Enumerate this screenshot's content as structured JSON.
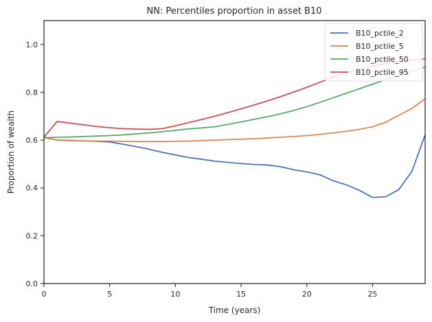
{
  "chart_data": {
    "type": "line",
    "title": "NN: Percentiles proportion in asset B10",
    "xlabel": "Time (years)",
    "ylabel": "Proportion of wealth",
    "xlim": [
      0,
      29
    ],
    "ylim": [
      0,
      1.1
    ],
    "xticks": [
      0,
      5,
      10,
      15,
      20,
      25
    ],
    "yticks": [
      0.0,
      0.2,
      0.4,
      0.6,
      0.8,
      1.0
    ],
    "xtick_labels": [
      "0",
      "5",
      "10",
      "15",
      "20",
      "25"
    ],
    "ytick_labels": [
      "0.0",
      "0.2",
      "0.4",
      "0.6",
      "0.8",
      "1.0"
    ],
    "legend_position": "top-right",
    "grid": false,
    "x": [
      0,
      1,
      2,
      3,
      4,
      5,
      6,
      7,
      8,
      9,
      10,
      11,
      12,
      13,
      14,
      15,
      16,
      17,
      18,
      19,
      20,
      21,
      22,
      23,
      24,
      25,
      26,
      27,
      28,
      29
    ],
    "series": [
      {
        "name": "B10_pctile_2",
        "color": "#4c72b0",
        "values": [
          0.612,
          0.6,
          0.598,
          0.597,
          0.595,
          0.592,
          0.583,
          0.573,
          0.562,
          0.549,
          0.538,
          0.527,
          0.52,
          0.512,
          0.507,
          0.502,
          0.498,
          0.496,
          0.489,
          0.476,
          0.467,
          0.455,
          0.43,
          0.413,
          0.39,
          0.36,
          0.363,
          0.393,
          0.47,
          0.622
        ]
      },
      {
        "name": "B10_pctile_5",
        "color": "#dd8452",
        "values": [
          0.61,
          0.601,
          0.599,
          0.597,
          0.596,
          0.596,
          0.595,
          0.594,
          0.594,
          0.594,
          0.595,
          0.596,
          0.598,
          0.6,
          0.602,
          0.604,
          0.606,
          0.609,
          0.612,
          0.615,
          0.619,
          0.624,
          0.63,
          0.637,
          0.645,
          0.656,
          0.675,
          0.704,
          0.733,
          0.773
        ]
      },
      {
        "name": "B10_pctile_50",
        "color": "#55a868",
        "values": [
          0.61,
          0.612,
          0.613,
          0.615,
          0.617,
          0.619,
          0.622,
          0.626,
          0.63,
          0.635,
          0.641,
          0.647,
          0.651,
          0.656,
          0.666,
          0.676,
          0.687,
          0.698,
          0.71,
          0.724,
          0.74,
          0.758,
          0.777,
          0.796,
          0.815,
          0.834,
          0.853,
          0.871,
          0.888,
          0.906
        ]
      },
      {
        "name": "B10_pctile_95",
        "color": "#c44e52",
        "values": [
          0.612,
          0.678,
          0.671,
          0.664,
          0.657,
          0.652,
          0.648,
          0.646,
          0.645,
          0.648,
          0.66,
          0.673,
          0.686,
          0.7,
          0.715,
          0.731,
          0.747,
          0.764,
          0.782,
          0.801,
          0.821,
          0.842,
          0.863,
          0.881,
          0.897,
          0.91,
          0.92,
          0.928,
          0.935,
          0.94
        ]
      }
    ]
  }
}
